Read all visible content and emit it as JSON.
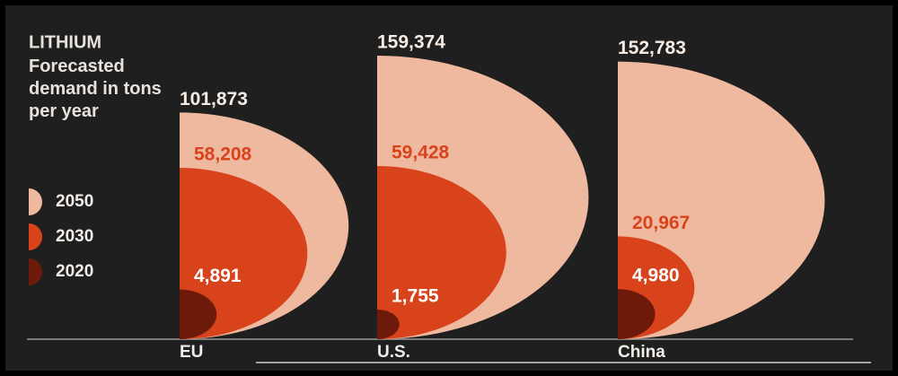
{
  "chart_data": {
    "type": "semicircle",
    "title": "LITHIUM",
    "subtitle": "Forecasted demand in tons per year",
    "categories": [
      "EU",
      "U.S.",
      "China"
    ],
    "series": [
      {
        "name": "2050",
        "color": "#efb9a0",
        "values": [
          101873,
          159374,
          152783
        ],
        "value_labels": [
          "101,873",
          "159,374",
          "152,783"
        ]
      },
      {
        "name": "2030",
        "color": "#d8431b",
        "values": [
          58208,
          59428,
          20967
        ],
        "value_labels": [
          "58,208",
          "59,428",
          "20,967"
        ]
      },
      {
        "name": "2020",
        "color": "#6e1a0b",
        "values": [
          4891,
          1755,
          4980
        ],
        "value_labels": [
          "4,891",
          "1,755",
          "4,980"
        ]
      }
    ]
  }
}
